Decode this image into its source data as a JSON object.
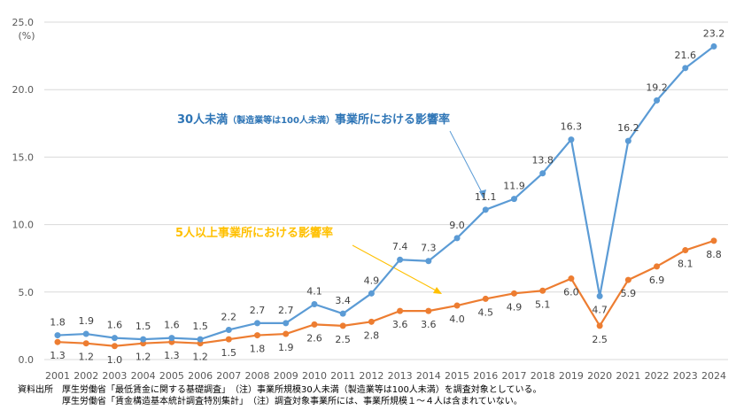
{
  "chart_data": {
    "type": "line",
    "title": "",
    "ylabel": "(%)",
    "xlabel": "",
    "ylim": [
      0,
      25
    ],
    "yticks": [
      "0.0",
      "5.0",
      "10.0",
      "15.0",
      "20.0",
      "25.0"
    ],
    "ytick_values": [
      0,
      5,
      10,
      15,
      20,
      25
    ],
    "grid": true,
    "categories": [
      "2001",
      "2002",
      "2003",
      "2004",
      "2005",
      "2006",
      "2007",
      "2008",
      "2009",
      "2010",
      "2011",
      "2012",
      "2013",
      "2014",
      "2015",
      "2016",
      "2017",
      "2018",
      "2019",
      "2020",
      "2021",
      "2022",
      "2023",
      "2024"
    ],
    "series": [
      {
        "name": "30人未満（製造業等は100人未満）事業所における影響率",
        "color": "#5b9bd5",
        "label_position": "above",
        "values": [
          1.8,
          1.9,
          1.6,
          1.5,
          1.6,
          1.5,
          2.2,
          2.7,
          2.7,
          4.1,
          3.4,
          4.9,
          7.4,
          7.3,
          9.0,
          11.1,
          11.9,
          13.8,
          16.3,
          4.7,
          16.2,
          19.2,
          21.6,
          23.2
        ]
      },
      {
        "name": "5人以上事業所における影響率",
        "color": "#ed7d31",
        "label_position": "below",
        "values": [
          1.3,
          1.2,
          1.0,
          1.2,
          1.3,
          1.2,
          1.5,
          1.8,
          1.9,
          2.6,
          2.5,
          2.8,
          3.6,
          3.6,
          4.0,
          4.5,
          4.9,
          5.1,
          6.0,
          2.5,
          5.9,
          6.9,
          8.1,
          8.8
        ]
      }
    ],
    "annotations": [
      {
        "text_prefix": "30人未満",
        "text_small": "（製造業等は100人未満）",
        "text_suffix": "事業所における影響率",
        "color": "#2e75b6",
        "points_to": "2016"
      },
      {
        "text": "5人以上事業所における影響率",
        "color": "#ffc000",
        "points_to": "2015"
      }
    ],
    "legend": "none"
  },
  "footnotes": {
    "line1": "資料出所　厚生労働省「最低賃金に関する基礎調査」　（注）事業所規模30人未満（製造業等は100人未満）を調査対象としている。",
    "line2": "　　　　　厚生労働省「賃金構造基本統計調査特別集計」　（注）調査対象事業所には、事業所規模１～４人は含まれていない。"
  }
}
